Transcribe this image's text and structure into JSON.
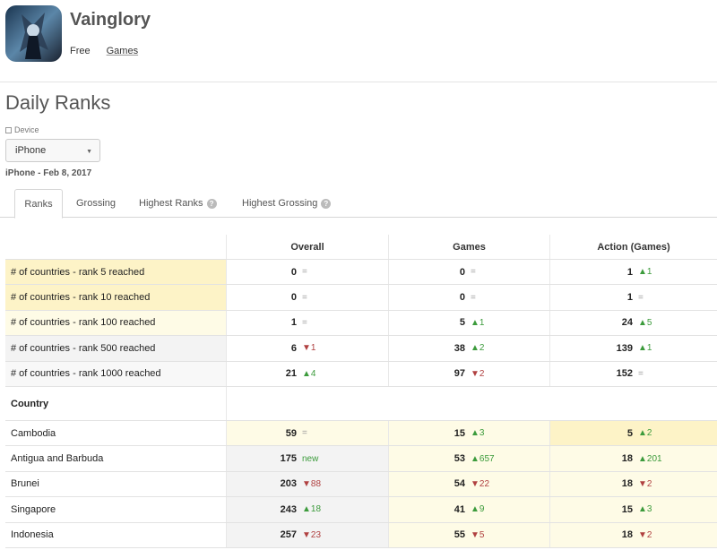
{
  "app": {
    "title": "Vainglory",
    "price": "Free",
    "category": "Games",
    "icon": "app-icon-image"
  },
  "section": {
    "title": "Daily Ranks",
    "device_label": "Device",
    "device_value": "iPhone",
    "date_line": "iPhone - Feb 8, 2017"
  },
  "tabs": [
    {
      "label": "Ranks",
      "active": true,
      "help": false
    },
    {
      "label": "Grossing",
      "active": false,
      "help": false
    },
    {
      "label": "Highest Ranks",
      "active": false,
      "help": true
    },
    {
      "label": "Highest Grossing",
      "active": false,
      "help": true
    }
  ],
  "columns": [
    "Overall",
    "Games",
    "Action (Games)"
  ],
  "summary_rows": [
    {
      "label": "# of countries - rank 5 reached",
      "cells": [
        {
          "v": "0",
          "d": "eq",
          "t": "="
        },
        {
          "v": "0",
          "d": "eq",
          "t": "="
        },
        {
          "v": "1",
          "d": "up",
          "t": "▲1"
        }
      ]
    },
    {
      "label": "# of countries - rank 10 reached",
      "cells": [
        {
          "v": "0",
          "d": "eq",
          "t": "="
        },
        {
          "v": "0",
          "d": "eq",
          "t": "="
        },
        {
          "v": "1",
          "d": "eq",
          "t": "="
        }
      ]
    },
    {
      "label": "# of countries - rank 100 reached",
      "cells": [
        {
          "v": "1",
          "d": "eq",
          "t": "="
        },
        {
          "v": "5",
          "d": "up",
          "t": "▲1"
        },
        {
          "v": "24",
          "d": "up",
          "t": "▲5"
        }
      ]
    },
    {
      "label": "# of countries - rank 500 reached",
      "cells": [
        {
          "v": "6",
          "d": "down",
          "t": "▼1"
        },
        {
          "v": "38",
          "d": "up",
          "t": "▲2"
        },
        {
          "v": "139",
          "d": "up",
          "t": "▲1"
        }
      ]
    },
    {
      "label": "# of countries - rank 1000 reached",
      "cells": [
        {
          "v": "21",
          "d": "up",
          "t": "▲4"
        },
        {
          "v": "97",
          "d": "down",
          "t": "▼2"
        },
        {
          "v": "152",
          "d": "eq",
          "t": "="
        }
      ]
    }
  ],
  "country_header": "Country",
  "country_rows": [
    {
      "label": "Cambodia",
      "cells": [
        {
          "v": "59",
          "d": "eq",
          "t": "="
        },
        {
          "v": "15",
          "d": "up",
          "t": "▲3"
        },
        {
          "v": "5",
          "d": "up",
          "t": "▲2"
        }
      ]
    },
    {
      "label": "Antigua and Barbuda",
      "cells": [
        {
          "v": "175",
          "d": "new",
          "t": "new"
        },
        {
          "v": "53",
          "d": "up",
          "t": "▲657"
        },
        {
          "v": "18",
          "d": "up",
          "t": "▲201"
        }
      ]
    },
    {
      "label": "Brunei",
      "cells": [
        {
          "v": "203",
          "d": "down",
          "t": "▼88"
        },
        {
          "v": "54",
          "d": "down",
          "t": "▼22"
        },
        {
          "v": "18",
          "d": "down",
          "t": "▼2"
        }
      ]
    },
    {
      "label": "Singapore",
      "cells": [
        {
          "v": "243",
          "d": "up",
          "t": "▲18"
        },
        {
          "v": "41",
          "d": "up",
          "t": "▲9"
        },
        {
          "v": "15",
          "d": "up",
          "t": "▲3"
        }
      ]
    },
    {
      "label": "Indonesia",
      "cells": [
        {
          "v": "257",
          "d": "down",
          "t": "▼23"
        },
        {
          "v": "55",
          "d": "down",
          "t": "▼5"
        },
        {
          "v": "18",
          "d": "down",
          "t": "▼2"
        }
      ]
    }
  ],
  "colors": {
    "highlight_strong": "#fdf3c7",
    "highlight_light": "#fefbe6",
    "neutral_row": "#f3f3f3",
    "up": "#3c9b3c",
    "down": "#b04040"
  }
}
